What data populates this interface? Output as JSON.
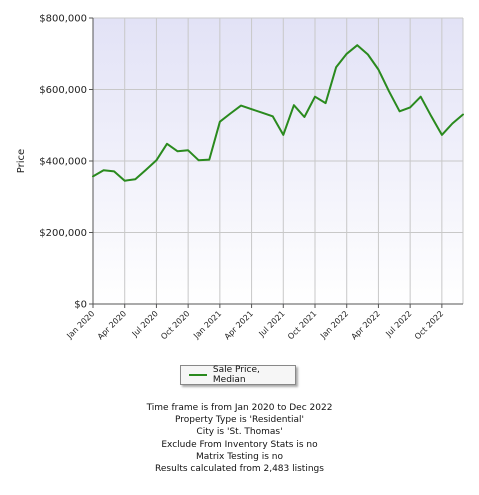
{
  "colors": {
    "line": "#2a8a1e",
    "plot_bg_top": "#e2e2f6",
    "plot_bg_bottom": "#ffffff",
    "grid": "#c8c8c8",
    "axis": "#555555"
  },
  "chart_data": {
    "type": "line",
    "ylabel": "Price",
    "xlabel": "",
    "title": "",
    "ylim": [
      0,
      800000
    ],
    "yticks": [
      0,
      200000,
      400000,
      600000,
      800000
    ],
    "ytick_labels": [
      "$0",
      "$200,000",
      "$400,000",
      "$600,000",
      "$800,000"
    ],
    "xlim": [
      "2020-01",
      "2022-12"
    ],
    "xtick_labels": [
      "Jan 2020",
      "Apr 2020",
      "Jul 2020",
      "Oct 2020",
      "Jan 2021",
      "Apr 2021",
      "Jul 2021",
      "Oct 2021",
      "Jan 2022",
      "Apr 2022",
      "Jul 2022",
      "Oct 2022"
    ],
    "xtick_values": [
      "2020-01",
      "2020-04",
      "2020-07",
      "2020-10",
      "2021-01",
      "2021-04",
      "2021-07",
      "2021-10",
      "2022-01",
      "2022-04",
      "2022-07",
      "2022-10"
    ],
    "grid": true,
    "legend": "bottom",
    "x": [
      "2020-01",
      "2020-02",
      "2020-03",
      "2020-04",
      "2020-05",
      "2020-06",
      "2020-07",
      "2020-08",
      "2020-09",
      "2020-10",
      "2020-11",
      "2020-12",
      "2021-01",
      "2021-02",
      "2021-03",
      "2021-04",
      "2021-05",
      "2021-06",
      "2021-07",
      "2021-08",
      "2021-09",
      "2021-10",
      "2021-11",
      "2021-12",
      "2022-01",
      "2022-02",
      "2022-03",
      "2022-04",
      "2022-05",
      "2022-06",
      "2022-07",
      "2022-08",
      "2022-09",
      "2022-10",
      "2022-11",
      "2022-12"
    ],
    "series": [
      {
        "name": "Sale Price, Median",
        "values": [
          357000,
          374000,
          371000,
          345000,
          349000,
          375000,
          402000,
          448000,
          427000,
          430000,
          402000,
          404000,
          510000,
          533000,
          555000,
          545000,
          535000,
          525000,
          473000,
          556000,
          523000,
          580000,
          562000,
          662000,
          700000,
          724000,
          698000,
          656000,
          595000,
          539000,
          550000,
          580000,
          525000,
          473000,
          505000,
          530000
        ]
      }
    ]
  },
  "footer": {
    "lines": [
      "Time frame is from Jan 2020 to Dec 2022",
      "Property Type is 'Residential'",
      "City is 'St. Thomas'",
      "Exclude From Inventory Stats is no",
      "Matrix Testing is no",
      "Results calculated from 2,483 listings"
    ]
  }
}
